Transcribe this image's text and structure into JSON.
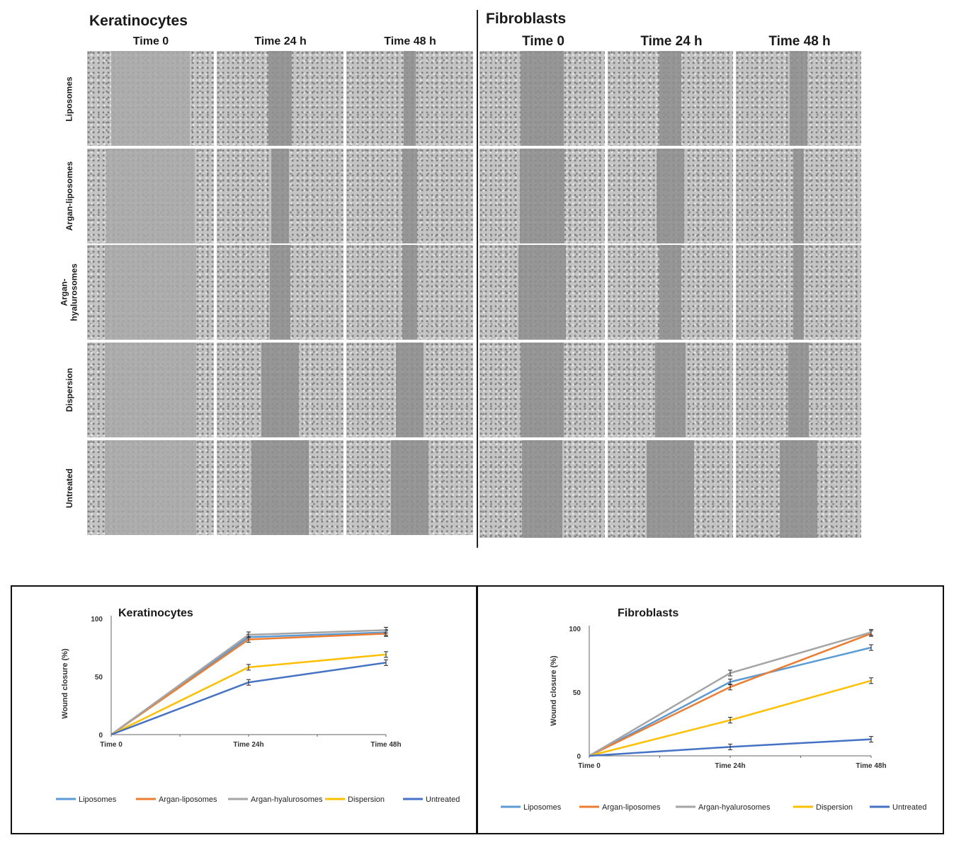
{
  "figure": {
    "keratinocytes_title": "Keratinocytes",
    "fibroblasts_title": "Fibroblasts",
    "keratinocyte_columns": [
      "Time 0",
      "Time 24 h",
      "Time 48 h"
    ],
    "fibroblast_columns": [
      "Time 0",
      "Time 24 h",
      "Time 48 h"
    ],
    "rows": [
      "Liposomes",
      "Argan-liposomes",
      "Argan-\nhyalurosomes",
      "Dispersion",
      "Untreated"
    ]
  },
  "colors": {
    "Liposomes": "#5b9bd5",
    "Argan-liposomes": "#ed7d31",
    "Argan-hyalurosomes": "#a5a5a5",
    "Dispersion": "#ffc000",
    "Untreated": "#4472c4"
  },
  "chart_data": [
    {
      "type": "line",
      "title": "Keratinocytes",
      "xlabel": "",
      "ylabel": "Wound closure (%)",
      "x": [
        "Time 0",
        "Time 24h",
        "Time 48h"
      ],
      "yticks": [
        0,
        50,
        100
      ],
      "ylim": [
        0,
        100
      ],
      "legend": "bottom",
      "series": [
        {
          "name": "Liposomes",
          "values": [
            0,
            84,
            88
          ]
        },
        {
          "name": "Argan-liposomes",
          "values": [
            0,
            82,
            87
          ]
        },
        {
          "name": "Argan-hyalurosomes",
          "values": [
            0,
            86,
            90
          ]
        },
        {
          "name": "Dispersion",
          "values": [
            0,
            58,
            69
          ]
        },
        {
          "name": "Untreated",
          "values": [
            0,
            45,
            62
          ]
        }
      ]
    },
    {
      "type": "line",
      "title": "Fibroblasts",
      "xlabel": "",
      "ylabel": "Wound closure (%)",
      "x": [
        "Time 0",
        "Time 24h",
        "Time 48h"
      ],
      "yticks": [
        0,
        50,
        100
      ],
      "ylim": [
        0,
        100
      ],
      "legend": "bottom",
      "series": [
        {
          "name": "Liposomes",
          "values": [
            0,
            58,
            85
          ]
        },
        {
          "name": "Argan-liposomes",
          "values": [
            0,
            54,
            96
          ]
        },
        {
          "name": "Argan-hyalurosomes",
          "values": [
            0,
            65,
            97
          ]
        },
        {
          "name": "Dispersion",
          "values": [
            0,
            28,
            59
          ]
        },
        {
          "name": "Untreated",
          "values": [
            0,
            7,
            13
          ]
        }
      ]
    }
  ]
}
